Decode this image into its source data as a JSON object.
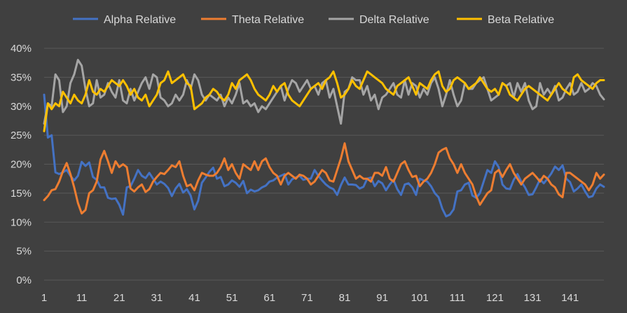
{
  "chart_data": {
    "type": "line",
    "title": "",
    "xlabel": "",
    "ylabel": "",
    "ylim": [
      0,
      0.4
    ],
    "y_ticks": [
      "0%",
      "5%",
      "10%",
      "15%",
      "20%",
      "25%",
      "30%",
      "35%",
      "40%"
    ],
    "x_tick_labels": [
      "1",
      "11",
      "21",
      "31",
      "41",
      "51",
      "61",
      "71",
      "81",
      "91",
      "101",
      "111",
      "121",
      "131",
      "141"
    ],
    "x_tick_values": [
      1,
      11,
      21,
      31,
      41,
      51,
      61,
      71,
      81,
      91,
      101,
      111,
      121,
      131,
      141
    ],
    "x_count": 150,
    "grid": "horizontal",
    "legend_position": "top",
    "series": [
      {
        "name": "Alpha Relative",
        "color": "#4472c4",
        "values": [
          0.32,
          0.246,
          0.25,
          0.186,
          0.183,
          0.186,
          0.19,
          0.18,
          0.172,
          0.18,
          0.204,
          0.197,
          0.203,
          0.178,
          0.173,
          0.16,
          0.16,
          0.142,
          0.14,
          0.141,
          0.13,
          0.113,
          0.16,
          0.162,
          0.175,
          0.19,
          0.18,
          0.176,
          0.185,
          0.175,
          0.165,
          0.17,
          0.166,
          0.159,
          0.145,
          0.158,
          0.166,
          0.151,
          0.157,
          0.146,
          0.122,
          0.137,
          0.168,
          0.177,
          0.187,
          0.194,
          0.175,
          0.178,
          0.162,
          0.165,
          0.172,
          0.168,
          0.161,
          0.171,
          0.15,
          0.156,
          0.153,
          0.155,
          0.16,
          0.163,
          0.17,
          0.172,
          0.177,
          0.18,
          0.183,
          0.165,
          0.174,
          0.177,
          0.18,
          0.173,
          0.175,
          0.175,
          0.19,
          0.18,
          0.172,
          0.165,
          0.16,
          0.157,
          0.147,
          0.164,
          0.177,
          0.165,
          0.165,
          0.164,
          0.158,
          0.161,
          0.175,
          0.177,
          0.162,
          0.171,
          0.167,
          0.155,
          0.165,
          0.173,
          0.157,
          0.147,
          0.165,
          0.167,
          0.16,
          0.147,
          0.175,
          0.172,
          0.17,
          0.162,
          0.15,
          0.143,
          0.123,
          0.11,
          0.113,
          0.122,
          0.153,
          0.155,
          0.165,
          0.168,
          0.146,
          0.142,
          0.15,
          0.17,
          0.19,
          0.185,
          0.205,
          0.195,
          0.165,
          0.158,
          0.157,
          0.173,
          0.183,
          0.17,
          0.16,
          0.147,
          0.148,
          0.16,
          0.174,
          0.167,
          0.175,
          0.184,
          0.196,
          0.19,
          0.198,
          0.175,
          0.169,
          0.153,
          0.158,
          0.165,
          0.153,
          0.143,
          0.145,
          0.158,
          0.165,
          0.161
        ]
      },
      {
        "name": "Theta Relative",
        "color": "#ed7d31",
        "values": [
          0.138,
          0.145,
          0.155,
          0.157,
          0.17,
          0.188,
          0.202,
          0.183,
          0.16,
          0.133,
          0.115,
          0.121,
          0.15,
          0.155,
          0.17,
          0.208,
          0.223,
          0.205,
          0.185,
          0.205,
          0.195,
          0.2,
          0.195,
          0.158,
          0.153,
          0.16,
          0.165,
          0.152,
          0.157,
          0.17,
          0.178,
          0.185,
          0.183,
          0.19,
          0.198,
          0.195,
          0.205,
          0.18,
          0.162,
          0.165,
          0.155,
          0.172,
          0.185,
          0.182,
          0.18,
          0.18,
          0.185,
          0.195,
          0.21,
          0.19,
          0.2,
          0.185,
          0.175,
          0.2,
          0.195,
          0.19,
          0.205,
          0.19,
          0.205,
          0.21,
          0.195,
          0.185,
          0.18,
          0.165,
          0.18,
          0.185,
          0.18,
          0.175,
          0.182,
          0.18,
          0.175,
          0.165,
          0.17,
          0.18,
          0.19,
          0.185,
          0.172,
          0.17,
          0.19,
          0.21,
          0.236,
          0.205,
          0.19,
          0.175,
          0.18,
          0.175,
          0.175,
          0.17,
          0.185,
          0.185,
          0.18,
          0.195,
          0.175,
          0.17,
          0.185,
          0.2,
          0.205,
          0.19,
          0.178,
          0.18,
          0.162,
          0.17,
          0.175,
          0.185,
          0.2,
          0.22,
          0.225,
          0.228,
          0.21,
          0.2,
          0.185,
          0.2,
          0.185,
          0.175,
          0.165,
          0.145,
          0.13,
          0.14,
          0.15,
          0.155,
          0.185,
          0.19,
          0.178,
          0.19,
          0.2,
          0.185,
          0.175,
          0.165,
          0.175,
          0.18,
          0.185,
          0.178,
          0.17,
          0.18,
          0.175,
          0.165,
          0.16,
          0.148,
          0.143,
          0.185,
          0.185,
          0.18,
          0.175,
          0.17,
          0.165,
          0.155,
          0.165,
          0.185,
          0.175,
          0.182
        ]
      },
      {
        "name": "Delta Relative",
        "color": "#a5a5a5",
        "values": [
          0.27,
          0.305,
          0.3,
          0.355,
          0.345,
          0.29,
          0.3,
          0.34,
          0.355,
          0.38,
          0.37,
          0.33,
          0.3,
          0.305,
          0.345,
          0.315,
          0.32,
          0.34,
          0.325,
          0.315,
          0.345,
          0.31,
          0.305,
          0.33,
          0.31,
          0.325,
          0.34,
          0.35,
          0.33,
          0.355,
          0.35,
          0.315,
          0.31,
          0.3,
          0.305,
          0.32,
          0.31,
          0.32,
          0.345,
          0.33,
          0.355,
          0.345,
          0.32,
          0.31,
          0.32,
          0.315,
          0.31,
          0.32,
          0.3,
          0.315,
          0.305,
          0.32,
          0.34,
          0.305,
          0.31,
          0.3,
          0.305,
          0.29,
          0.3,
          0.295,
          0.305,
          0.315,
          0.325,
          0.335,
          0.31,
          0.33,
          0.345,
          0.34,
          0.325,
          0.335,
          0.345,
          0.33,
          0.335,
          0.32,
          0.34,
          0.345,
          0.315,
          0.33,
          0.3,
          0.27,
          0.325,
          0.33,
          0.35,
          0.345,
          0.345,
          0.32,
          0.335,
          0.31,
          0.32,
          0.295,
          0.315,
          0.32,
          0.33,
          0.34,
          0.32,
          0.315,
          0.345,
          0.32,
          0.34,
          0.335,
          0.315,
          0.33,
          0.32,
          0.34,
          0.35,
          0.33,
          0.3,
          0.32,
          0.345,
          0.32,
          0.3,
          0.31,
          0.34,
          0.33,
          0.33,
          0.34,
          0.345,
          0.35,
          0.33,
          0.31,
          0.315,
          0.32,
          0.34,
          0.335,
          0.34,
          0.315,
          0.34,
          0.325,
          0.34,
          0.31,
          0.295,
          0.3,
          0.34,
          0.32,
          0.33,
          0.32,
          0.335,
          0.31,
          0.315,
          0.33,
          0.34,
          0.32,
          0.325,
          0.34,
          0.325,
          0.33,
          0.34,
          0.335,
          0.32,
          0.312
        ]
      },
      {
        "name": "Beta Relative",
        "color": "#ffc000",
        "values": [
          0.257,
          0.305,
          0.295,
          0.305,
          0.3,
          0.325,
          0.315,
          0.305,
          0.32,
          0.31,
          0.305,
          0.32,
          0.345,
          0.325,
          0.32,
          0.33,
          0.325,
          0.335,
          0.345,
          0.34,
          0.335,
          0.345,
          0.335,
          0.32,
          0.33,
          0.315,
          0.31,
          0.32,
          0.3,
          0.31,
          0.32,
          0.34,
          0.345,
          0.36,
          0.34,
          0.345,
          0.35,
          0.355,
          0.34,
          0.335,
          0.295,
          0.3,
          0.305,
          0.315,
          0.32,
          0.33,
          0.325,
          0.315,
          0.31,
          0.32,
          0.34,
          0.33,
          0.345,
          0.35,
          0.355,
          0.345,
          0.33,
          0.32,
          0.315,
          0.31,
          0.32,
          0.335,
          0.325,
          0.335,
          0.34,
          0.32,
          0.31,
          0.305,
          0.3,
          0.31,
          0.32,
          0.33,
          0.335,
          0.34,
          0.33,
          0.345,
          0.35,
          0.36,
          0.34,
          0.315,
          0.32,
          0.33,
          0.345,
          0.335,
          0.33,
          0.345,
          0.36,
          0.355,
          0.35,
          0.345,
          0.34,
          0.33,
          0.325,
          0.32,
          0.335,
          0.34,
          0.345,
          0.35,
          0.335,
          0.32,
          0.34,
          0.335,
          0.33,
          0.345,
          0.355,
          0.36,
          0.335,
          0.325,
          0.33,
          0.345,
          0.35,
          0.345,
          0.34,
          0.33,
          0.335,
          0.34,
          0.35,
          0.34,
          0.33,
          0.325,
          0.33,
          0.32,
          0.34,
          0.335,
          0.32,
          0.315,
          0.31,
          0.32,
          0.33,
          0.335,
          0.33,
          0.325,
          0.32,
          0.315,
          0.31,
          0.32,
          0.33,
          0.34,
          0.33,
          0.325,
          0.32,
          0.35,
          0.355,
          0.345,
          0.34,
          0.335,
          0.33,
          0.34,
          0.345,
          0.345
        ]
      }
    ]
  }
}
